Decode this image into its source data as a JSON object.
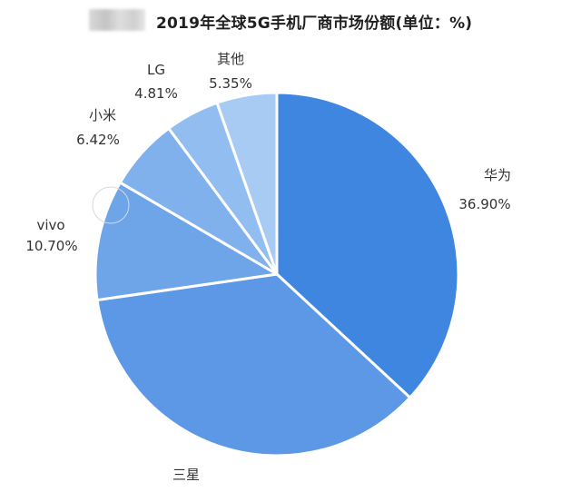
{
  "chart_data": {
    "type": "pie",
    "title": "2019年全球5G手机厂商市场份额(单位：%)",
    "categories": [
      "华为",
      "三星",
      "vivo",
      "小米",
      "LG",
      "其他"
    ],
    "values": [
      36.9,
      35.82,
      10.7,
      6.42,
      4.81,
      5.35
    ],
    "labels": {
      "华为": "36.90%",
      "vivo": "10.70%",
      "小米": "6.42%",
      "LG": "4.81%",
      "其他": "5.35%"
    },
    "colors": [
      "#3f86e0",
      "#5c98e6",
      "#6ea5e8",
      "#80b1ec",
      "#92bdf0",
      "#a8cbf4"
    ],
    "legend": "none",
    "grid": false
  }
}
